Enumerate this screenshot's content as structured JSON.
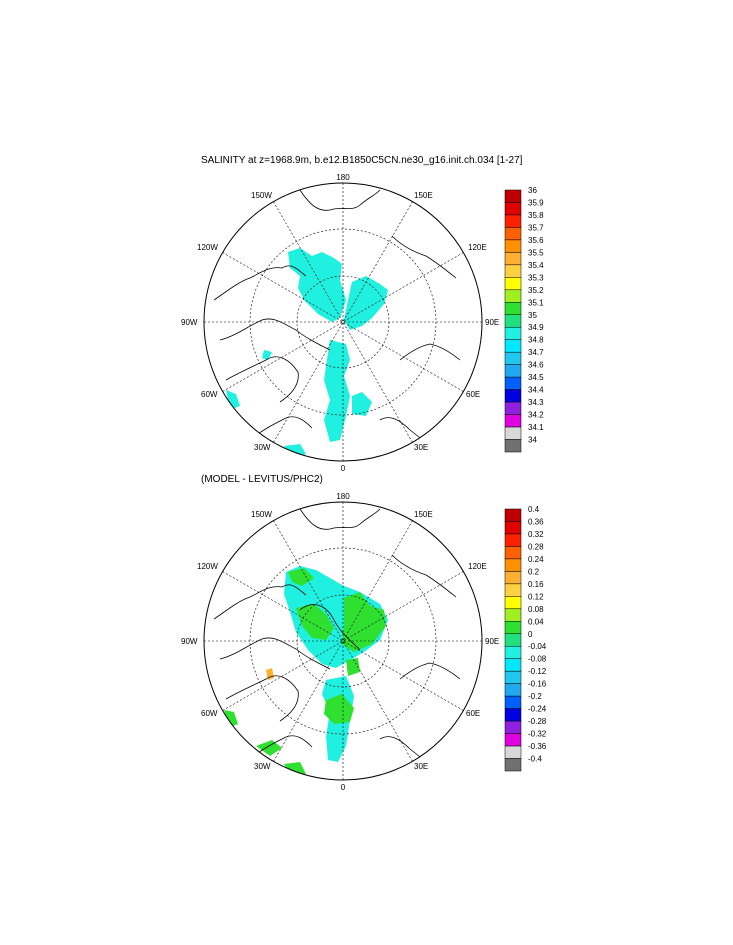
{
  "map_top": {
    "title": "SALINITY at z=1968.9m, b.e12.B1850C5CN.ne30_g16.init.ch.034 [1-27]",
    "lon_labels": [
      "180",
      "150E",
      "120E",
      "90E",
      "60E",
      "30E",
      "0",
      "30W",
      "60W",
      "90W",
      "120W",
      "150W"
    ],
    "colorbar_labels": [
      "36",
      "35.9",
      "35.8",
      "35.7",
      "35.6",
      "35.5",
      "35.4",
      "35.3",
      "35.2",
      "35.1",
      "35",
      "34.9",
      "34.8",
      "34.7",
      "34.6",
      "34.5",
      "34.4",
      "34.3",
      "34.2",
      "34.1",
      "34"
    ]
  },
  "map_bottom": {
    "title": "(MODEL - LEVITUS/PHC2)",
    "lon_labels": [
      "180",
      "150E",
      "120E",
      "90E",
      "60E",
      "30E",
      "0",
      "30W",
      "60W",
      "90W",
      "120W",
      "150W"
    ],
    "colorbar_labels": [
      "0.4",
      "0.36",
      "0.32",
      "0.28",
      "0.24",
      "0.2",
      "0.16",
      "0.12",
      "0.08",
      "0.04",
      "0",
      "-0.04",
      "-0.08",
      "-0.12",
      "-0.16",
      "-0.2",
      "-0.24",
      "-0.28",
      "-0.32",
      "-0.36",
      "-0.4"
    ]
  },
  "colorbar_colors": [
    "#c00000",
    "#e00000",
    "#ff2000",
    "#ff6000",
    "#ff9000",
    "#ffb030",
    "#ffd040",
    "#ffff00",
    "#a0f020",
    "#30e030",
    "#20e080",
    "#20f0e0",
    "#00e8ff",
    "#20c8f0",
    "#20a8f0",
    "#0060ff",
    "#0000e0",
    "#9020e0",
    "#e000e0",
    "#d8d8d8",
    "#707070"
  ]
}
